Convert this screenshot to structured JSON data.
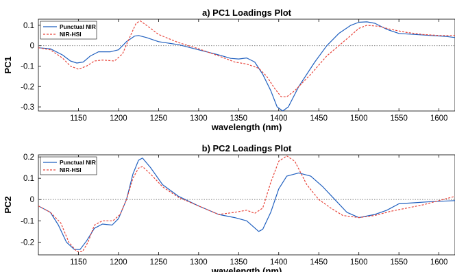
{
  "chart_data": [
    {
      "type": "line",
      "title": "a) PC1 Loadings Plot",
      "xlabel": "wavelength (nm)",
      "ylabel": "PC1",
      "xlim": [
        1100,
        1620
      ],
      "ylim": [
        -0.32,
        0.13
      ],
      "xticks": [
        1150,
        1200,
        1250,
        1300,
        1350,
        1400,
        1450,
        1500,
        1550,
        1600
      ],
      "yticks": [
        {
          "value": 0.1,
          "label": "0.1"
        },
        {
          "value": 0,
          "label": "0"
        },
        {
          "value": -0.1,
          "label": "-0.1"
        },
        {
          "value": -0.2,
          "label": "-0.2"
        },
        {
          "value": -0.3,
          "label": "-0.3"
        }
      ],
      "zero_line": true,
      "legend": "top-left",
      "series": [
        {
          "name": "Punctual NIR",
          "color": "#1f5fbf",
          "style": "solid",
          "points": [
            [
              1100,
              -0.01
            ],
            [
              1115,
              -0.015
            ],
            [
              1130,
              -0.045
            ],
            [
              1140,
              -0.075
            ],
            [
              1148,
              -0.085
            ],
            [
              1156,
              -0.08
            ],
            [
              1165,
              -0.05
            ],
            [
              1175,
              -0.03
            ],
            [
              1190,
              -0.03
            ],
            [
              1200,
              -0.02
            ],
            [
              1210,
              0.02
            ],
            [
              1220,
              0.047
            ],
            [
              1225,
              0.05
            ],
            [
              1235,
              0.04
            ],
            [
              1250,
              0.02
            ],
            [
              1275,
              0.005
            ],
            [
              1300,
              -0.02
            ],
            [
              1325,
              -0.045
            ],
            [
              1340,
              -0.062
            ],
            [
              1350,
              -0.065
            ],
            [
              1360,
              -0.06
            ],
            [
              1370,
              -0.08
            ],
            [
              1380,
              -0.14
            ],
            [
              1390,
              -0.22
            ],
            [
              1398,
              -0.3
            ],
            [
              1405,
              -0.32
            ],
            [
              1412,
              -0.3
            ],
            [
              1425,
              -0.2
            ],
            [
              1445,
              -0.08
            ],
            [
              1460,
              0
            ],
            [
              1475,
              0.06
            ],
            [
              1490,
              0.1
            ],
            [
              1500,
              0.115
            ],
            [
              1510,
              0.117
            ],
            [
              1520,
              0.11
            ],
            [
              1535,
              0.08
            ],
            [
              1550,
              0.06
            ],
            [
              1570,
              0.055
            ],
            [
              1590,
              0.05
            ],
            [
              1610,
              0.045
            ],
            [
              1620,
              0.04
            ]
          ]
        },
        {
          "name": "NIR-HSI",
          "color": "#e8443a",
          "style": "dashed",
          "points": [
            [
              1100,
              -0.01
            ],
            [
              1115,
              -0.02
            ],
            [
              1130,
              -0.06
            ],
            [
              1140,
              -0.1
            ],
            [
              1150,
              -0.115
            ],
            [
              1160,
              -0.1
            ],
            [
              1170,
              -0.075
            ],
            [
              1180,
              -0.07
            ],
            [
              1195,
              -0.075
            ],
            [
              1205,
              -0.04
            ],
            [
              1215,
              0.05
            ],
            [
              1222,
              0.11
            ],
            [
              1227,
              0.122
            ],
            [
              1235,
              0.1
            ],
            [
              1250,
              0.055
            ],
            [
              1275,
              0.015
            ],
            [
              1300,
              -0.015
            ],
            [
              1325,
              -0.05
            ],
            [
              1345,
              -0.08
            ],
            [
              1360,
              -0.09
            ],
            [
              1375,
              -0.11
            ],
            [
              1385,
              -0.15
            ],
            [
              1395,
              -0.21
            ],
            [
              1403,
              -0.25
            ],
            [
              1410,
              -0.25
            ],
            [
              1420,
              -0.22
            ],
            [
              1440,
              -0.14
            ],
            [
              1460,
              -0.05
            ],
            [
              1475,
              0
            ],
            [
              1490,
              0.05
            ],
            [
              1500,
              0.085
            ],
            [
              1510,
              0.1
            ],
            [
              1525,
              0.095
            ],
            [
              1540,
              0.08
            ],
            [
              1560,
              0.065
            ],
            [
              1580,
              0.055
            ],
            [
              1600,
              0.05
            ],
            [
              1620,
              0.05
            ]
          ]
        }
      ]
    },
    {
      "type": "line",
      "title": "b) PC2 Loadings Plot",
      "xlabel": "wavelength (nm)",
      "ylabel": "PC2",
      "xlim": [
        1100,
        1620
      ],
      "ylim": [
        -0.26,
        0.21
      ],
      "xticks": [
        1150,
        1200,
        1250,
        1300,
        1350,
        1400,
        1450,
        1500,
        1550,
        1600
      ],
      "yticks": [
        {
          "value": 0.2,
          "label": "0.2"
        },
        {
          "value": 0.1,
          "label": "0.1"
        },
        {
          "value": 0,
          "label": "0"
        },
        {
          "value": -0.1,
          "label": "-0.1"
        },
        {
          "value": -0.2,
          "label": "-0.2"
        }
      ],
      "zero_line": true,
      "legend": "top-left",
      "series": [
        {
          "name": "Punctual NIR",
          "color": "#1f5fbf",
          "style": "solid",
          "points": [
            [
              1100,
              -0.03
            ],
            [
              1115,
              -0.06
            ],
            [
              1125,
              -0.12
            ],
            [
              1135,
              -0.2
            ],
            [
              1145,
              -0.235
            ],
            [
              1152,
              -0.235
            ],
            [
              1160,
              -0.195
            ],
            [
              1170,
              -0.135
            ],
            [
              1180,
              -0.115
            ],
            [
              1192,
              -0.12
            ],
            [
              1200,
              -0.09
            ],
            [
              1210,
              0
            ],
            [
              1218,
              0.12
            ],
            [
              1225,
              0.185
            ],
            [
              1230,
              0.195
            ],
            [
              1240,
              0.15
            ],
            [
              1255,
              0.07
            ],
            [
              1275,
              0.015
            ],
            [
              1300,
              -0.03
            ],
            [
              1325,
              -0.07
            ],
            [
              1345,
              -0.085
            ],
            [
              1360,
              -0.1
            ],
            [
              1375,
              -0.15
            ],
            [
              1380,
              -0.14
            ],
            [
              1390,
              -0.06
            ],
            [
              1400,
              0.05
            ],
            [
              1410,
              0.11
            ],
            [
              1425,
              0.125
            ],
            [
              1440,
              0.11
            ],
            [
              1455,
              0.06
            ],
            [
              1470,
              0
            ],
            [
              1485,
              -0.06
            ],
            [
              1500,
              -0.085
            ],
            [
              1520,
              -0.07
            ],
            [
              1535,
              -0.05
            ],
            [
              1550,
              -0.02
            ],
            [
              1570,
              -0.015
            ],
            [
              1590,
              -0.01
            ],
            [
              1620,
              -0.005
            ]
          ]
        },
        {
          "name": "NIR-HSI",
          "color": "#e8443a",
          "style": "dashed",
          "points": [
            [
              1100,
              -0.03
            ],
            [
              1115,
              -0.06
            ],
            [
              1128,
              -0.11
            ],
            [
              1138,
              -0.2
            ],
            [
              1148,
              -0.245
            ],
            [
              1155,
              -0.245
            ],
            [
              1162,
              -0.2
            ],
            [
              1170,
              -0.12
            ],
            [
              1180,
              -0.1
            ],
            [
              1193,
              -0.1
            ],
            [
              1202,
              -0.07
            ],
            [
              1210,
              0
            ],
            [
              1218,
              0.1
            ],
            [
              1225,
              0.148
            ],
            [
              1230,
              0.155
            ],
            [
              1240,
              0.12
            ],
            [
              1255,
              0.06
            ],
            [
              1275,
              0.01
            ],
            [
              1300,
              -0.03
            ],
            [
              1325,
              -0.07
            ],
            [
              1345,
              -0.06
            ],
            [
              1360,
              -0.05
            ],
            [
              1370,
              -0.065
            ],
            [
              1380,
              -0.04
            ],
            [
              1390,
              0.08
            ],
            [
              1400,
              0.18
            ],
            [
              1410,
              0.205
            ],
            [
              1420,
              0.18
            ],
            [
              1435,
              0.07
            ],
            [
              1450,
              0
            ],
            [
              1465,
              -0.04
            ],
            [
              1480,
              -0.075
            ],
            [
              1500,
              -0.085
            ],
            [
              1520,
              -0.075
            ],
            [
              1540,
              -0.055
            ],
            [
              1560,
              -0.04
            ],
            [
              1580,
              -0.025
            ],
            [
              1600,
              -0.005
            ],
            [
              1620,
              0.015
            ]
          ]
        }
      ]
    }
  ]
}
